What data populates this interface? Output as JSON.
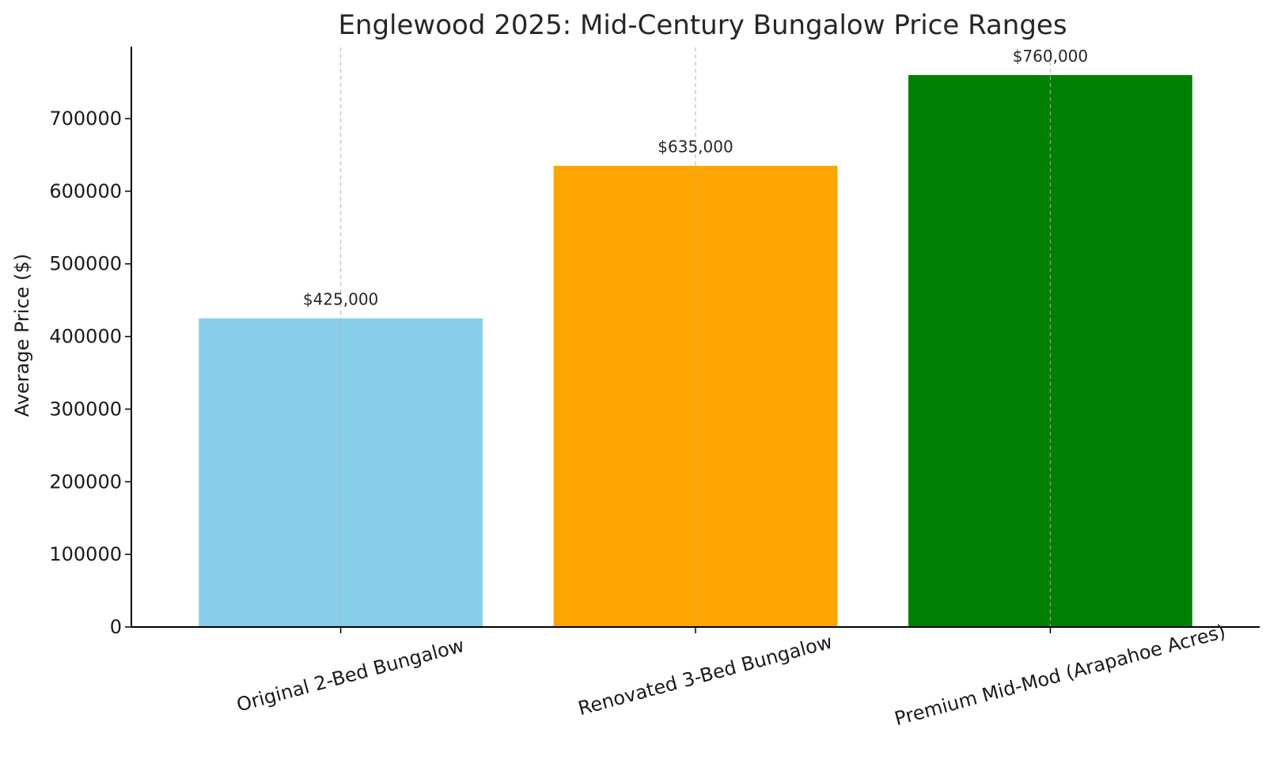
{
  "chart_data": {
    "type": "bar",
    "title": "Englewood 2025: Mid-Century Bungalow Price Ranges",
    "xlabel": "",
    "ylabel": "Average Price ($)",
    "categories": [
      "Original 2-Bed Bungalow",
      "Renovated 3-Bed Bungalow",
      "Premium Mid-Mod (Arapahoe Acres)"
    ],
    "values": [
      425000,
      635000,
      760000
    ],
    "value_labels": [
      "$425,000",
      "$635,000",
      "$760,000"
    ],
    "colors": [
      "#87CEEB",
      "#FFA500",
      "#008000"
    ],
    "ylim": [
      0,
      798000
    ],
    "yticks": [
      0,
      100000,
      200000,
      300000,
      400000,
      500000,
      600000,
      700000
    ],
    "ytick_labels": [
      "0",
      "100000",
      "200000",
      "300000",
      "400000",
      "500000",
      "600000",
      "700000"
    ],
    "grid": "x-axis dashed vertical lines",
    "xtick_rotation": 15
  }
}
